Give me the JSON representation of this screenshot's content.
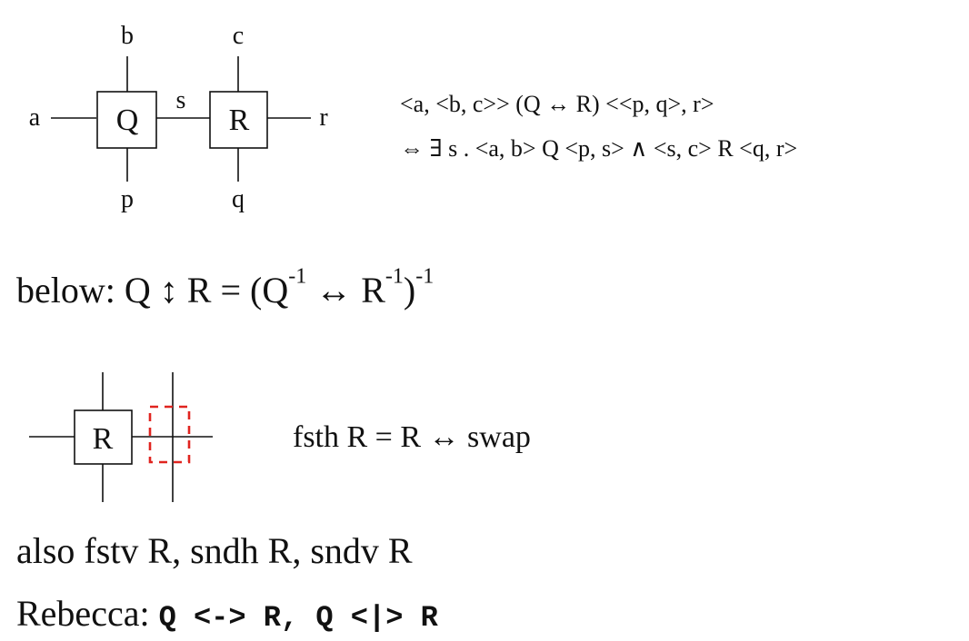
{
  "diagram1": {
    "box_q": "Q",
    "box_r": "R",
    "wire_a": "a",
    "wire_b": "b",
    "wire_c": "c",
    "wire_p": "p",
    "wire_q": "q",
    "wire_r": "r",
    "wire_s": "s"
  },
  "equation1": {
    "line1": "<a, <b, c>>  (Q ↔ R) <<p, q>, r>",
    "line2": "⇔  ∃ s . <a, b> Q <p, s>  ∧  <s, c> R <q, r>"
  },
  "below": {
    "prefix": "below:  Q ",
    "arrow": "↕",
    "mid1": " R = (Q",
    "sup1": "-1",
    "mid2": " ↔ R",
    "sup2": "-1",
    "mid3": ")",
    "sup3": "-1"
  },
  "diagram2": {
    "box_r": "R",
    "equation": "fsth R  =  R ↔ swap"
  },
  "also": "also fstv R, sndh R, sndv R",
  "rebecca": {
    "label": "Rebecca:  ",
    "code": "Q <-> R, Q <|> R"
  },
  "colors": {
    "highlight": "#e0241f"
  }
}
